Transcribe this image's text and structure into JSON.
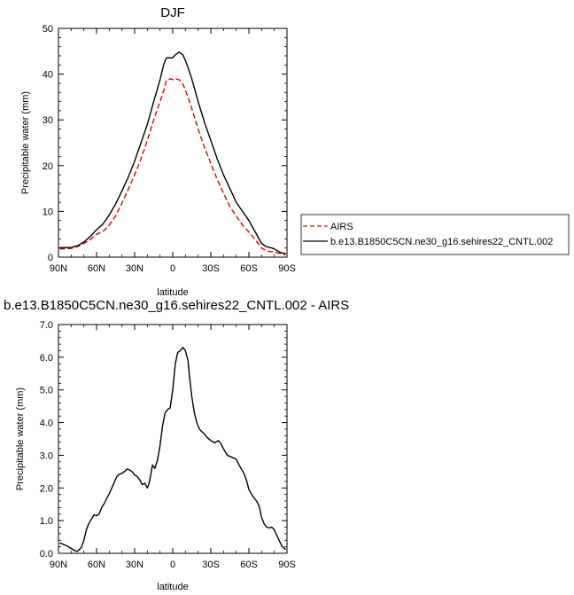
{
  "chart_data": [
    {
      "type": "line",
      "title": "DJF",
      "xlabel": "latitude",
      "ylabel": "Precipitable water (mm)",
      "xlim": [
        90,
        -90
      ],
      "ylim": [
        0,
        50
      ],
      "xticks": [
        90,
        60,
        30,
        0,
        -30,
        -60,
        -90
      ],
      "xtick_labels": [
        "90N",
        "60N",
        "30N",
        "0",
        "30S",
        "60S",
        "90S"
      ],
      "yticks": [
        0,
        10,
        20,
        30,
        40,
        50
      ],
      "ytick_labels": [
        "0",
        "10",
        "20",
        "30",
        "40",
        "50"
      ],
      "grid": false,
      "legend": "outside-right",
      "series": [
        {
          "name": "AIRS",
          "color": "#e00000",
          "dash": "dashed",
          "x": [
            89,
            85,
            80,
            75,
            70,
            65,
            60,
            55,
            50,
            45,
            40,
            35,
            30,
            25,
            20,
            15,
            10,
            7,
            5,
            3,
            2,
            0,
            -2,
            -5,
            -8,
            -10,
            -12,
            -15,
            -20,
            -25,
            -30,
            -35,
            -40,
            -45,
            -50,
            -55,
            -60,
            -63,
            -65,
            -68,
            -70,
            -73,
            -75,
            -78,
            -80,
            -83,
            -85,
            -89
          ],
          "y": [
            1.8,
            1.8,
            1.9,
            2.3,
            3.0,
            3.8,
            5.0,
            5.6,
            7.0,
            9.0,
            11.8,
            14.8,
            18.0,
            21.5,
            25.5,
            30.0,
            34.0,
            36.5,
            38.6,
            38.8,
            39.0,
            38.8,
            39.0,
            38.8,
            37.8,
            36.5,
            35.0,
            32.5,
            28.0,
            24.0,
            20.5,
            17.0,
            14.0,
            11.0,
            9.0,
            7.0,
            5.5,
            4.5,
            3.8,
            2.8,
            2.0,
            1.5,
            1.3,
            1.2,
            1.1,
            0.9,
            0.8,
            0.5
          ]
        },
        {
          "name": "b.e13.B1850C5CN.ne30_g16.sehires22_CNTL.002",
          "color": "#000000",
          "dash": "solid",
          "x": [
            89,
            85,
            80,
            75,
            70,
            65,
            60,
            55,
            50,
            45,
            40,
            35,
            30,
            25,
            20,
            15,
            10,
            7,
            5,
            3,
            2,
            0,
            -2,
            -5,
            -8,
            -10,
            -12,
            -15,
            -20,
            -25,
            -30,
            -35,
            -40,
            -45,
            -50,
            -55,
            -60,
            -63,
            -65,
            -68,
            -70,
            -73,
            -75,
            -78,
            -80,
            -83,
            -85,
            -89
          ],
          "y": [
            2.1,
            2.1,
            2.1,
            2.5,
            3.3,
            4.5,
            6.0,
            7.2,
            9.2,
            11.6,
            14.5,
            17.5,
            21.0,
            25.0,
            29.0,
            34.0,
            38.8,
            42.2,
            43.5,
            43.6,
            43.5,
            43.6,
            44.2,
            44.8,
            44.2,
            43.0,
            41.5,
            39.0,
            34.0,
            29.5,
            25.5,
            21.5,
            18.0,
            15.0,
            12.0,
            10.0,
            8.0,
            6.5,
            5.5,
            4.0,
            3.0,
            2.4,
            2.2,
            2.0,
            1.8,
            1.3,
            1.0,
            0.8
          ]
        }
      ]
    },
    {
      "type": "line",
      "title": "b.e13.B1850C5CN.ne30_g16.sehires22_CNTL.002 - AIRS",
      "xlabel": "latitude",
      "ylabel": "Precipitable water (mm)",
      "xlim": [
        90,
        -90
      ],
      "ylim": [
        0,
        7
      ],
      "xticks": [
        90,
        60,
        30,
        0,
        -30,
        -60,
        -90
      ],
      "xtick_labels": [
        "90N",
        "60N",
        "30N",
        "0",
        "30S",
        "60S",
        "90S"
      ],
      "yticks": [
        0,
        1,
        2,
        3,
        4,
        5,
        6,
        7
      ],
      "ytick_labels": [
        "0.0",
        "1.0",
        "2.0",
        "3.0",
        "4.0",
        "5.0",
        "6.0",
        "7.0"
      ],
      "grid": false,
      "series": [
        {
          "color": "#000000",
          "dash": "solid",
          "x": [
            89,
            86,
            83,
            80,
            77,
            75,
            72,
            70,
            68,
            66,
            64,
            62,
            60,
            58,
            56,
            54,
            52,
            50,
            48,
            46,
            44,
            42,
            40,
            38,
            36,
            34,
            32,
            30,
            28,
            26,
            24,
            22,
            20,
            19,
            18,
            16,
            14,
            12,
            10,
            8,
            6,
            4,
            2,
            0,
            -2,
            -4,
            -6,
            -8,
            -10,
            -12,
            -13,
            -15,
            -17,
            -19,
            -21,
            -23,
            -25,
            -27,
            -30,
            -33,
            -36,
            -38,
            -40,
            -43,
            -46,
            -50,
            -53,
            -56,
            -58,
            -60,
            -63,
            -66,
            -68,
            -70,
            -72,
            -74,
            -76,
            -78,
            -80,
            -82,
            -84,
            -86,
            -88,
            -89
          ],
          "y": [
            0.32,
            0.27,
            0.22,
            0.15,
            0.08,
            0.06,
            0.18,
            0.4,
            0.72,
            0.92,
            1.05,
            1.18,
            1.15,
            1.2,
            1.4,
            1.52,
            1.68,
            1.82,
            2.0,
            2.18,
            2.35,
            2.42,
            2.45,
            2.5,
            2.58,
            2.55,
            2.5,
            2.4,
            2.35,
            2.25,
            2.1,
            2.15,
            2.0,
            2.1,
            2.25,
            2.7,
            2.6,
            2.85,
            3.3,
            3.9,
            4.3,
            4.4,
            4.45,
            5.0,
            5.8,
            6.15,
            6.2,
            6.3,
            6.2,
            5.9,
            5.5,
            4.8,
            4.3,
            4.0,
            3.8,
            3.72,
            3.65,
            3.55,
            3.45,
            3.38,
            3.45,
            3.35,
            3.2,
            3.0,
            2.95,
            2.88,
            2.65,
            2.45,
            2.25,
            1.95,
            1.75,
            1.6,
            1.45,
            1.1,
            0.9,
            0.8,
            0.78,
            0.8,
            0.72,
            0.55,
            0.38,
            0.22,
            0.15,
            0.12
          ]
        }
      ]
    }
  ]
}
